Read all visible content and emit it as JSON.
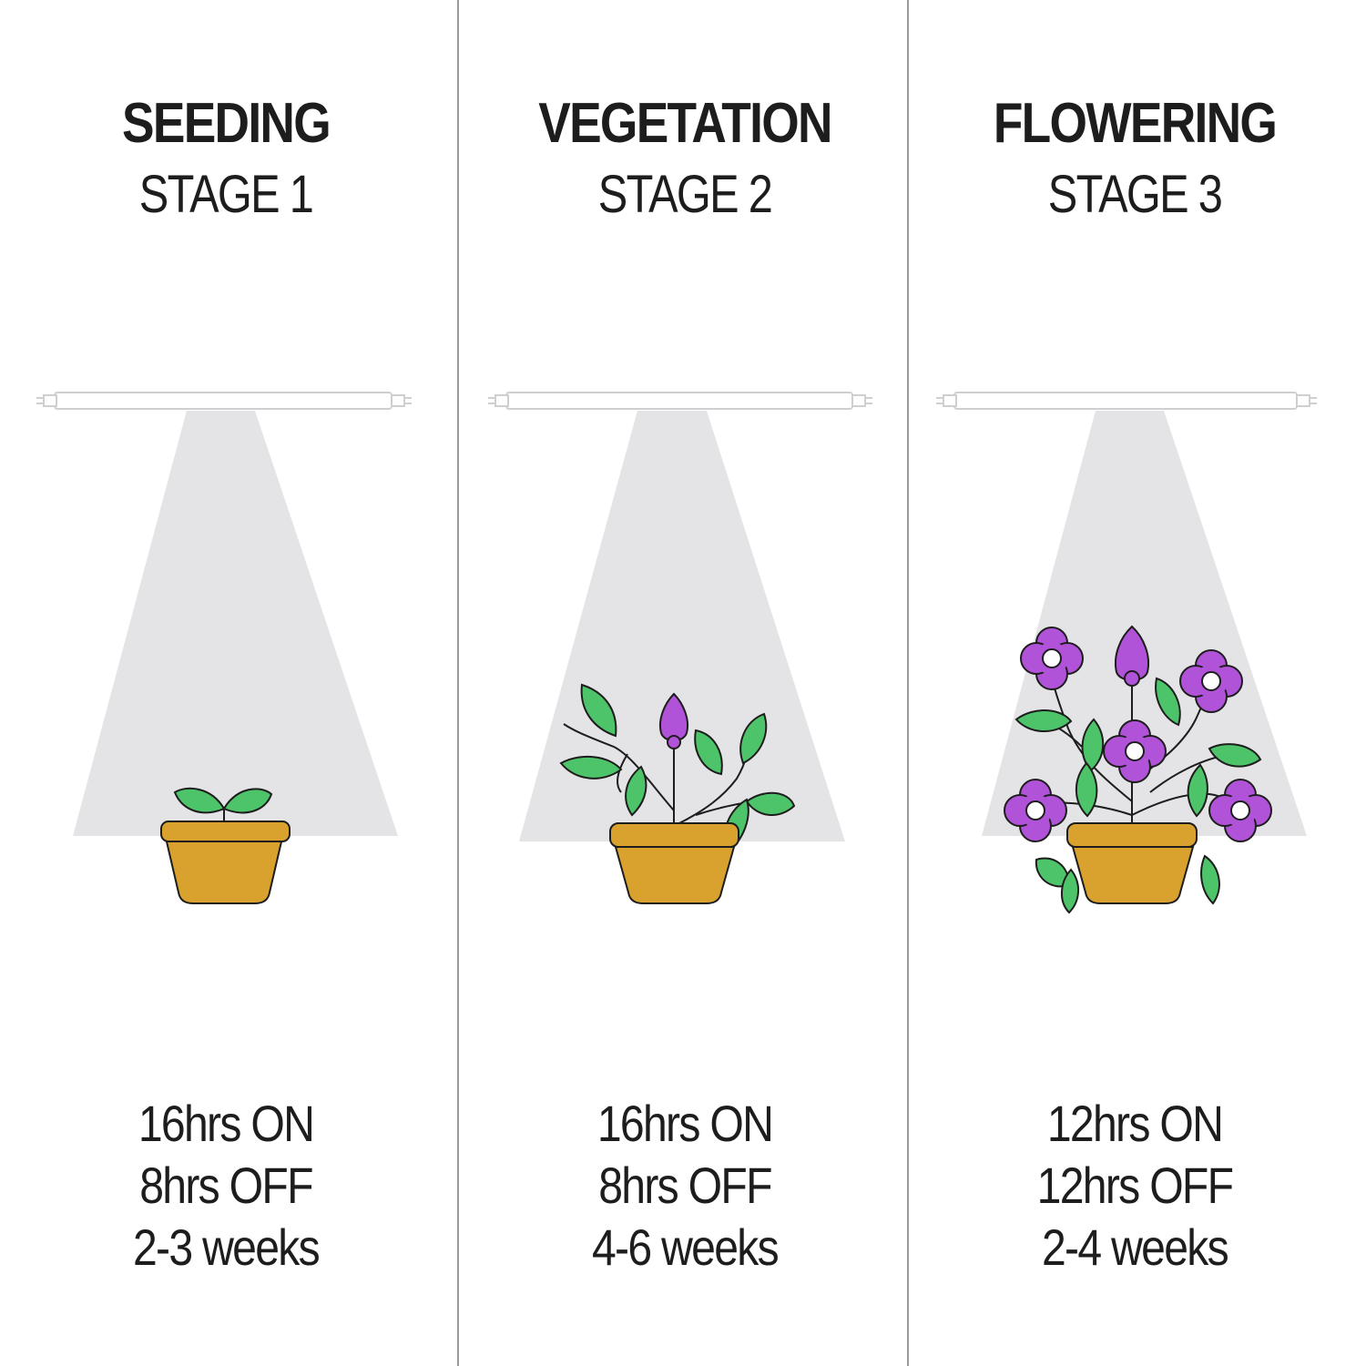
{
  "stages": [
    {
      "name": "SEEDING",
      "stage": "STAGE 1",
      "light_on": "16hrs ON",
      "light_off": "8hrs OFF",
      "duration": "2-3 weeks"
    },
    {
      "name": "VEGETATION",
      "stage": "STAGE 2",
      "light_on": "16hrs ON",
      "light_off": "8hrs OFF",
      "duration": "4-6 weeks"
    },
    {
      "name": "FLOWERING",
      "stage": "STAGE 3",
      "light_on": "12hrs ON",
      "light_off": "12hrs OFF",
      "duration": "2-4 weeks"
    }
  ],
  "colors": {
    "background": "#ffffff",
    "panel": "#f7f6f7",
    "light_beam": "#e4e3e6",
    "pot": "#d9a12e",
    "leaf": "#4ec46a",
    "flower": "#b153d8",
    "outline": "#1d1d1d"
  },
  "icons": [
    "grow-light-tube-icon",
    "light-beam-icon",
    "seedling-pot-icon",
    "vegetative-plant-icon",
    "flowering-plant-icon"
  ]
}
